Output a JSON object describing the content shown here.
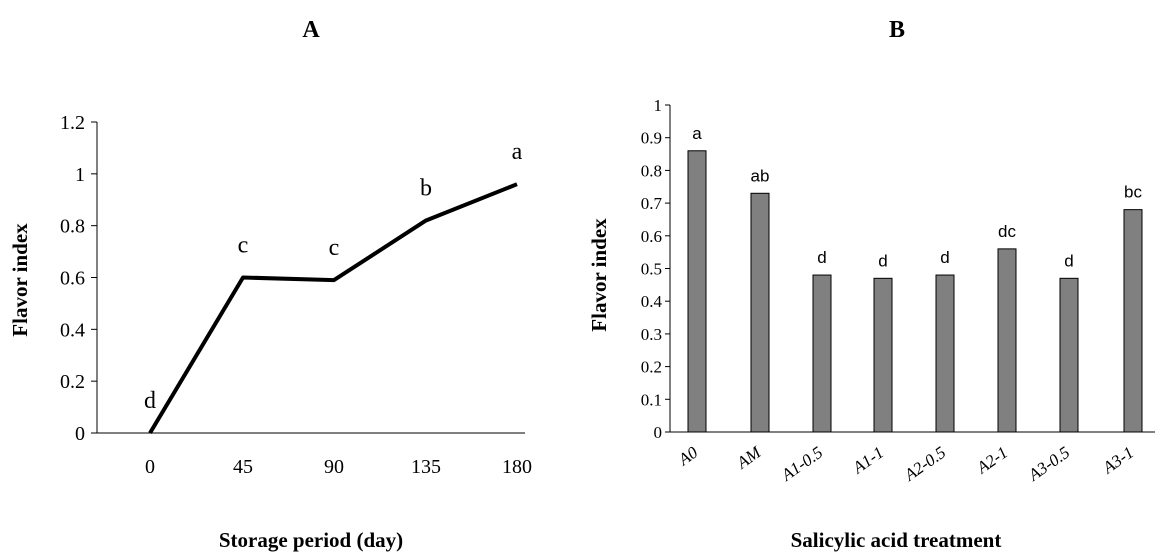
{
  "chart_data": [
    {
      "type": "line",
      "panel_label": "A",
      "xlabel": "Storage period (day)",
      "ylabel": "Flavor index",
      "x": [
        "0",
        "45",
        "90",
        "135",
        "180"
      ],
      "values": [
        0,
        0.6,
        0.59,
        0.82,
        0.96
      ],
      "labels": [
        "d",
        "c",
        "c",
        "b",
        "a"
      ],
      "ylim": [
        0,
        1.2
      ],
      "yticks": [
        "0",
        "0.2",
        "0.4",
        "0.6",
        "0.8",
        "1",
        "1.2"
      ],
      "grid": false,
      "line_color": "#000000"
    },
    {
      "type": "bar",
      "panel_label": "B",
      "xlabel": "Salicylic acid treatment",
      "ylabel": "Flavor index",
      "categories": [
        "A0",
        "AM",
        "A1-0.5",
        "A1-1",
        "A2-0.5",
        "A2-1",
        "A3-0.5",
        "A3-1"
      ],
      "values": [
        0.86,
        0.73,
        0.48,
        0.47,
        0.48,
        0.56,
        0.47,
        0.68
      ],
      "labels": [
        "a",
        "ab",
        "d",
        "d",
        "d",
        "dc",
        "d",
        "bc"
      ],
      "ylim": [
        0,
        1
      ],
      "yticks": [
        "0",
        "0.1",
        "0.2",
        "0.3",
        "0.4",
        "0.5",
        "0.6",
        "0.7",
        "0.8",
        "0.9",
        "1"
      ],
      "grid": false,
      "bar_color": "#808080"
    }
  ]
}
